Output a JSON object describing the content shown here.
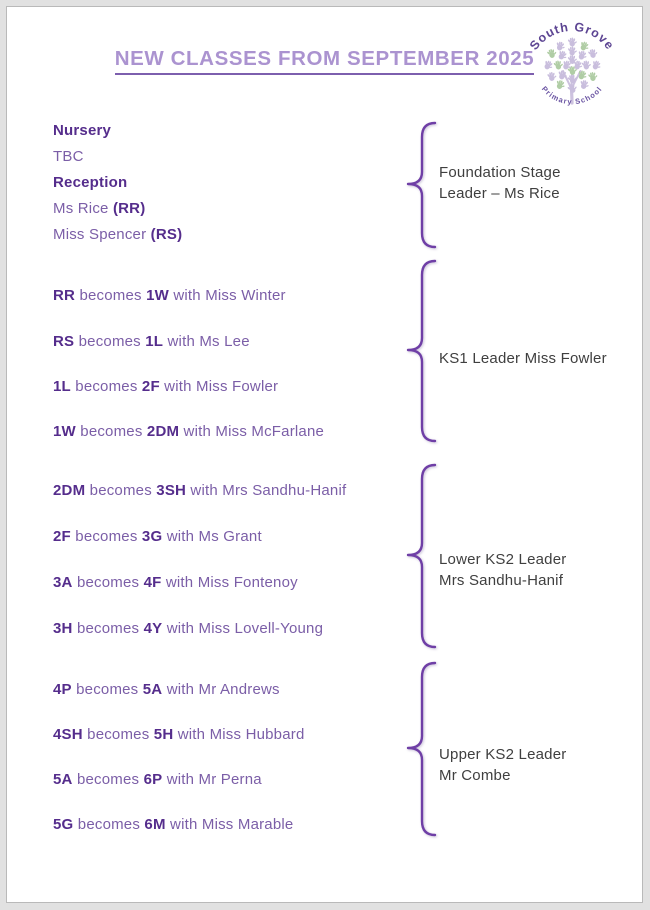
{
  "document": {
    "title": "NEW CLASSES FROM SEPTEMBER 2025",
    "logo": {
      "arc_top": "South Grove",
      "arc_bottom": "Primary School"
    },
    "colors": {
      "title": "#ab93d0",
      "title_underline": "#7d5fae",
      "bold_text": "#552d8c",
      "regular_text": "#7b5ea7",
      "label_text": "#3f3f3f",
      "brace": "#6f3fa6",
      "logo_hand_lavender": "#c9bedd",
      "logo_hand_green": "#b0cda5",
      "logo_text": "#5d4593"
    },
    "groups": [
      {
        "leader_label_lines": [
          "Foundation Stage",
          "Leader – Ms Rice"
        ],
        "lines": [
          {
            "segments": [
              {
                "text": "Nursery",
                "bold": true
              }
            ]
          },
          {
            "segments": [
              {
                "text": "TBC",
                "bold": false
              }
            ]
          },
          {
            "segments": [
              {
                "text": "Reception",
                "bold": true
              }
            ]
          },
          {
            "segments": [
              {
                "text": "Ms Rice ",
                "bold": false
              },
              {
                "text": "(RR)",
                "bold": true
              }
            ]
          },
          {
            "segments": [
              {
                "text": "Miss Spencer ",
                "bold": false
              },
              {
                "text": "(RS)",
                "bold": true
              }
            ]
          }
        ]
      },
      {
        "leader_label_lines": [
          "KS1 Leader Miss Fowler"
        ],
        "lines": [
          {
            "segments": [
              {
                "text": "RR",
                "bold": true
              },
              {
                "text": " becomes ",
                "bold": false
              },
              {
                "text": "1W",
                "bold": true
              },
              {
                "text": " with Miss Winter",
                "bold": false
              }
            ]
          },
          {
            "segments": [
              {
                "text": "RS",
                "bold": true
              },
              {
                "text": " becomes ",
                "bold": false
              },
              {
                "text": "1L",
                "bold": true
              },
              {
                "text": " with Ms Lee",
                "bold": false
              }
            ]
          },
          {
            "segments": [
              {
                "text": "1L",
                "bold": true
              },
              {
                "text": " becomes ",
                "bold": false
              },
              {
                "text": "2F",
                "bold": true
              },
              {
                "text": " with Miss Fowler",
                "bold": false
              }
            ]
          },
          {
            "segments": [
              {
                "text": "1W",
                "bold": true
              },
              {
                "text": " becomes ",
                "bold": false
              },
              {
                "text": "2DM",
                "bold": true
              },
              {
                "text": " with Miss McFarlane",
                "bold": false
              }
            ]
          }
        ]
      },
      {
        "leader_label_lines": [
          "Lower KS2 Leader",
          "Mrs Sandhu-Hanif"
        ],
        "lines": [
          {
            "segments": [
              {
                "text": "2DM",
                "bold": true
              },
              {
                "text": " becomes ",
                "bold": false
              },
              {
                "text": "3SH",
                "bold": true
              },
              {
                "text": " with Mrs Sandhu-Hanif",
                "bold": false
              }
            ]
          },
          {
            "segments": [
              {
                "text": "2F",
                "bold": true
              },
              {
                "text": " becomes ",
                "bold": false
              },
              {
                "text": "3G",
                "bold": true
              },
              {
                "text": " with Ms Grant",
                "bold": false
              }
            ]
          },
          {
            "segments": [
              {
                "text": "3A",
                "bold": true
              },
              {
                "text": " becomes ",
                "bold": false
              },
              {
                "text": "4F",
                "bold": true
              },
              {
                "text": " with Miss Fontenoy",
                "bold": false
              }
            ]
          },
          {
            "segments": [
              {
                "text": "3H",
                "bold": true
              },
              {
                "text": " becomes ",
                "bold": false
              },
              {
                "text": "4Y",
                "bold": true
              },
              {
                "text": " with Miss Lovell-Young",
                "bold": false
              }
            ]
          }
        ]
      },
      {
        "leader_label_lines": [
          "Upper KS2 Leader",
          "Mr Combe"
        ],
        "lines": [
          {
            "segments": [
              {
                "text": "4P",
                "bold": true
              },
              {
                "text": " becomes ",
                "bold": false
              },
              {
                "text": "5A",
                "bold": true
              },
              {
                "text": " with Mr Andrews",
                "bold": false
              }
            ]
          },
          {
            "segments": [
              {
                "text": "4SH",
                "bold": true
              },
              {
                "text": " becomes ",
                "bold": false
              },
              {
                "text": "5H",
                "bold": true
              },
              {
                "text": " with Miss Hubbard",
                "bold": false
              }
            ]
          },
          {
            "segments": [
              {
                "text": "5A",
                "bold": true
              },
              {
                "text": " becomes ",
                "bold": false
              },
              {
                "text": "6P",
                "bold": true
              },
              {
                "text": " with Mr Perna",
                "bold": false
              }
            ]
          },
          {
            "segments": [
              {
                "text": "5G",
                "bold": true
              },
              {
                "text": " becomes ",
                "bold": false
              },
              {
                "text": "6M",
                "bold": true
              },
              {
                "text": " with Miss Marable",
                "bold": false
              }
            ]
          }
        ]
      }
    ]
  }
}
